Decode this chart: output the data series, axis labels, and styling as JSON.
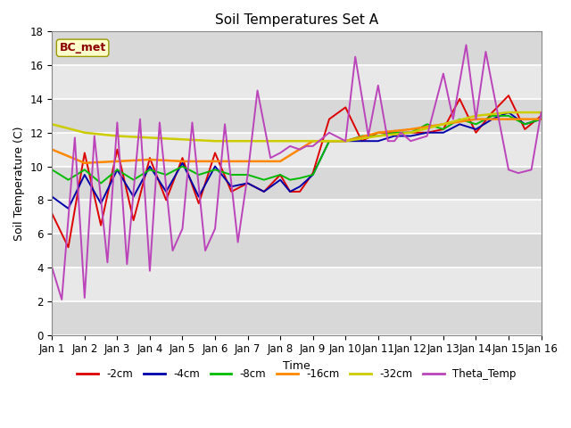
{
  "title": "Soil Temperatures Set A",
  "xlabel": "Time",
  "ylabel": "Soil Temperature (C)",
  "ylim": [
    0,
    18
  ],
  "xlim": [
    0,
    15
  ],
  "annotation_text": "BC_met",
  "annotation_color": "#8B0000",
  "annotation_bg": "#ffffcc",
  "annotation_edge": "#999900",
  "xtick_labels": [
    "Jan 1",
    "Jan 2",
    "Jan 3",
    "Jan 4",
    "Jan 5",
    "Jan 6",
    "Jan 7",
    "Jan 8",
    "Jan 9",
    "Jan 10",
    "Jan 11",
    "Jan 12",
    "Jan 13",
    "Jan 14",
    "Jan 15",
    "Jan 16"
  ],
  "series_order": [
    "-2cm",
    "-4cm",
    "-8cm",
    "-16cm",
    "-32cm",
    "Theta_Temp"
  ],
  "series": {
    "-2cm": {
      "color": "#dd0000",
      "lw": 1.4,
      "x": [
        0.0,
        0.5,
        1.0,
        1.5,
        2.0,
        2.5,
        3.0,
        3.5,
        4.0,
        4.5,
        5.0,
        5.5,
        6.0,
        6.5,
        7.0,
        7.3,
        7.6,
        8.0,
        8.5,
        9.0,
        9.5,
        10.0,
        10.5,
        11.0,
        11.5,
        12.0,
        12.5,
        13.0,
        13.5,
        14.0,
        14.5,
        15.0
      ],
      "y": [
        7.2,
        5.2,
        10.8,
        6.5,
        11.0,
        6.8,
        10.5,
        8.0,
        10.5,
        7.8,
        10.8,
        8.5,
        9.0,
        8.5,
        9.5,
        8.5,
        8.5,
        9.6,
        12.8,
        13.5,
        11.5,
        12.0,
        12.0,
        12.0,
        12.0,
        12.2,
        14.0,
        12.0,
        13.2,
        14.2,
        12.2,
        13.0
      ]
    },
    "-4cm": {
      "color": "#0000aa",
      "lw": 1.4,
      "x": [
        0.0,
        0.5,
        1.0,
        1.5,
        2.0,
        2.5,
        3.0,
        3.5,
        4.0,
        4.5,
        5.0,
        5.5,
        6.0,
        6.5,
        7.0,
        7.3,
        7.6,
        8.0,
        8.5,
        9.0,
        9.5,
        10.0,
        10.5,
        11.0,
        11.5,
        12.0,
        12.5,
        13.0,
        13.5,
        14.0,
        14.5,
        15.0
      ],
      "y": [
        8.2,
        7.5,
        9.5,
        7.8,
        9.8,
        8.2,
        10.0,
        8.5,
        10.2,
        8.2,
        10.0,
        8.8,
        9.0,
        8.5,
        9.2,
        8.5,
        8.8,
        9.5,
        11.5,
        11.5,
        11.5,
        11.5,
        11.8,
        11.8,
        12.0,
        12.0,
        12.5,
        12.2,
        12.8,
        13.2,
        12.5,
        12.8
      ]
    },
    "-8cm": {
      "color": "#00bb00",
      "lw": 1.4,
      "x": [
        0.0,
        0.5,
        1.0,
        1.5,
        2.0,
        2.5,
        3.0,
        3.5,
        4.0,
        4.5,
        5.0,
        5.5,
        6.0,
        6.5,
        7.0,
        7.3,
        7.6,
        8.0,
        8.5,
        9.0,
        9.5,
        10.0,
        10.5,
        11.0,
        11.5,
        12.0,
        12.5,
        13.0,
        13.5,
        14.0,
        14.5,
        15.0
      ],
      "y": [
        9.8,
        9.2,
        9.8,
        9.0,
        9.8,
        9.2,
        9.8,
        9.5,
        10.0,
        9.5,
        9.8,
        9.5,
        9.5,
        9.2,
        9.5,
        9.2,
        9.3,
        9.5,
        11.5,
        11.5,
        11.8,
        11.8,
        12.0,
        12.0,
        12.5,
        12.2,
        12.8,
        12.5,
        13.0,
        13.0,
        12.5,
        12.8
      ]
    },
    "-16cm": {
      "color": "#ff8800",
      "lw": 1.8,
      "x": [
        0.0,
        1.0,
        2.0,
        3.0,
        4.0,
        5.0,
        6.0,
        7.0,
        8.0,
        9.0,
        10.0,
        11.0,
        12.0,
        13.0,
        14.0,
        15.0
      ],
      "y": [
        11.0,
        10.2,
        10.3,
        10.4,
        10.3,
        10.3,
        10.3,
        10.3,
        11.5,
        11.5,
        12.0,
        12.2,
        12.5,
        12.8,
        12.8,
        12.8
      ]
    },
    "-32cm": {
      "color": "#cccc00",
      "lw": 1.8,
      "x": [
        0.0,
        1.0,
        2.0,
        3.0,
        4.0,
        5.0,
        6.0,
        7.0,
        8.0,
        9.0,
        10.0,
        11.0,
        12.0,
        13.0,
        14.0,
        15.0
      ],
      "y": [
        12.5,
        12.0,
        11.8,
        11.7,
        11.6,
        11.5,
        11.5,
        11.5,
        11.5,
        11.5,
        11.8,
        12.0,
        12.5,
        13.0,
        13.2,
        13.2
      ]
    },
    "Theta_Temp": {
      "color": "#bb44bb",
      "lw": 1.4,
      "x": [
        0.0,
        0.3,
        0.7,
        1.0,
        1.3,
        1.7,
        2.0,
        2.3,
        2.7,
        3.0,
        3.3,
        3.7,
        4.0,
        4.3,
        4.7,
        5.0,
        5.3,
        5.7,
        6.0,
        6.3,
        6.7,
        7.0,
        7.3,
        7.6,
        7.8,
        8.0,
        8.5,
        9.0,
        9.3,
        9.7,
        10.0,
        10.3,
        10.5,
        10.7,
        11.0,
        11.5,
        12.0,
        12.3,
        12.7,
        13.0,
        13.3,
        13.7,
        14.0,
        14.3,
        14.7,
        15.0
      ],
      "y": [
        4.0,
        2.1,
        11.7,
        2.2,
        11.8,
        4.3,
        12.6,
        4.2,
        12.8,
        3.8,
        12.6,
        5.0,
        6.3,
        12.6,
        5.0,
        6.3,
        12.5,
        5.5,
        9.5,
        14.5,
        10.5,
        10.8,
        11.2,
        11.0,
        11.2,
        11.2,
        12.0,
        11.5,
        16.5,
        11.8,
        14.8,
        11.5,
        11.5,
        12.0,
        11.5,
        11.8,
        15.5,
        12.8,
        17.2,
        12.8,
        16.8,
        12.8,
        9.8,
        9.6,
        9.8,
        13.2
      ]
    }
  },
  "legend_items": [
    "-2cm",
    "-4cm",
    "-8cm",
    "-16cm",
    "-32cm",
    "Theta_Temp"
  ],
  "legend_colors": [
    "#dd0000",
    "#0000aa",
    "#00bb00",
    "#ff8800",
    "#cccc00",
    "#bb44bb"
  ]
}
